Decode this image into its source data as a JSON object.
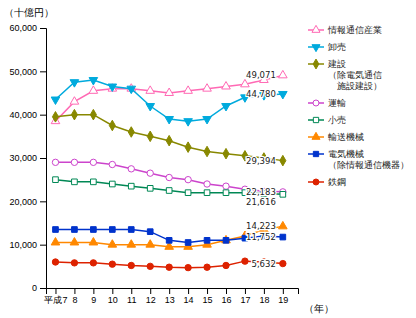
{
  "chart_data": {
    "type": "line",
    "x_label": "（年）",
    "y_label": "（十億円）",
    "x": [
      7,
      8,
      9,
      10,
      11,
      12,
      13,
      14,
      15,
      16,
      17,
      18,
      19
    ],
    "xlim": [
      6.5,
      19.8
    ],
    "xticks": [
      {
        "value": 7,
        "label": "平成7"
      },
      8,
      9,
      10,
      11,
      12,
      13,
      14,
      15,
      16,
      17,
      18,
      19
    ],
    "ylim": [
      0,
      60000
    ],
    "yticks": [
      0,
      {
        "value": 10000,
        "label": "10,000"
      },
      {
        "value": 20000,
        "label": "20,000"
      },
      {
        "value": 30000,
        "label": "30,000"
      },
      {
        "value": 40000,
        "label": "40,000"
      },
      {
        "value": 50000,
        "label": "50,000"
      },
      {
        "value": 60000,
        "label": "60,000"
      }
    ],
    "grid": false,
    "legend": "right",
    "series": [
      {
        "name": "情報通信産業",
        "color": "#ff69b4",
        "marker": "triangle-up-open",
        "values": [
          38500,
          43000,
          45500,
          46000,
          46000,
          45500,
          45000,
          45500,
          46000,
          46500,
          47000,
          48000,
          49071
        ]
      },
      {
        "name": "卸売",
        "color": "#00aadd",
        "marker": "triangle-down",
        "values": [
          43500,
          47500,
          48000,
          46500,
          46000,
          42000,
          39000,
          38500,
          39000,
          42000,
          44000,
          44500,
          44780
        ]
      },
      {
        "name": "建設\n（除電気通信\n　施設建設）",
        "color": "#888800",
        "marker": "diamond",
        "values": [
          39500,
          40000,
          40000,
          37500,
          36000,
          35000,
          34000,
          32500,
          31500,
          31000,
          30500,
          30000,
          29394
        ]
      },
      {
        "name": "運輸",
        "color": "#cc44cc",
        "marker": "circle-open",
        "values": [
          29000,
          29000,
          29000,
          28500,
          27500,
          26500,
          25500,
          25000,
          24000,
          23500,
          22800,
          22300,
          22183
        ]
      },
      {
        "name": "小売",
        "color": "#008855",
        "marker": "square-open",
        "values": [
          25000,
          24500,
          24500,
          24000,
          23500,
          23000,
          22500,
          22000,
          22000,
          22000,
          22000,
          21800,
          21616
        ]
      },
      {
        "name": "輸送機械",
        "color": "#ff8800",
        "marker": "triangle-up",
        "values": [
          10500,
          10500,
          10500,
          10000,
          10000,
          10000,
          9500,
          9500,
          10000,
          11000,
          12000,
          13500,
          14223
        ]
      },
      {
        "name": "電気機械\n（除情報通信機器）",
        "color": "#0033cc",
        "marker": "square",
        "values": [
          13500,
          13500,
          13500,
          13500,
          13500,
          13000,
          11000,
          10500,
          11000,
          11000,
          11500,
          12000,
          11752
        ]
      },
      {
        "name": "鉄鋼",
        "color": "#dd2200",
        "marker": "circle",
        "values": [
          6000,
          5800,
          5800,
          5500,
          5200,
          5000,
          4800,
          4700,
          4800,
          5200,
          6200,
          6000,
          5632
        ]
      }
    ],
    "annotations": [
      {
        "text": "49,071",
        "x": 19,
        "y": 49071
      },
      {
        "text": "44,780",
        "x": 19,
        "y": 44780
      },
      {
        "text": "29,394",
        "x": 19,
        "y": 29394
      },
      {
        "text": "22,183",
        "x": 19,
        "y": 22183
      },
      {
        "text": "21,616",
        "x": 19,
        "y": 21616
      },
      {
        "text": "14,223",
        "x": 19,
        "y": 14223
      },
      {
        "text": "11,752",
        "x": 19,
        "y": 11752
      },
      {
        "text": "5,632",
        "x": 19,
        "y": 5632
      }
    ]
  }
}
